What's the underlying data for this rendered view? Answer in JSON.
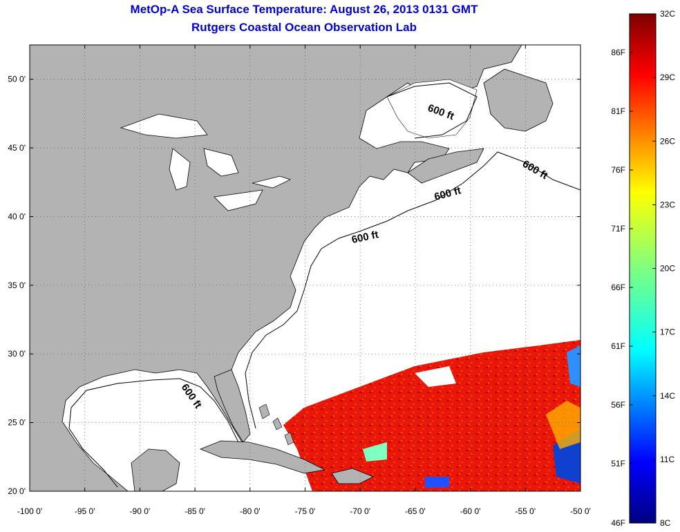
{
  "title": "MetOp-A Sea Surface Temperature:  August 26, 2013 0131 GMT",
  "subtitle": "Rutgers Coastal Ocean Observation Lab",
  "map": {
    "lon_range": [
      -100,
      -50
    ],
    "lat_range": [
      20,
      52.5
    ],
    "grid": true,
    "lon_ticks": [
      "-100 0'",
      "-95 0'",
      "-90 0'",
      "-85 0'",
      "-80 0'",
      "-75 0'",
      "-70 0'",
      "-65 0'",
      "-60 0'",
      "-55 0'",
      "-50 0'"
    ],
    "lat_ticks": [
      "20 0'",
      "25 0'",
      "30 0'",
      "35 0'",
      "40 0'",
      "45 0'",
      "50 0'"
    ],
    "land_color": "#b3b3b3",
    "contour_labels": [
      "600 ft",
      "600 ft",
      "600 ft",
      "600 ft",
      "600 ft"
    ]
  },
  "colorbar": {
    "celsius": [
      "32C",
      "29C",
      "26C",
      "23C",
      "20C",
      "17C",
      "14C",
      "11C",
      "8C"
    ],
    "fahrenheit": [
      "86F",
      "81F",
      "76F",
      "71F",
      "66F",
      "61F",
      "56F",
      "51F",
      "46F"
    ],
    "colormap": "jet"
  }
}
